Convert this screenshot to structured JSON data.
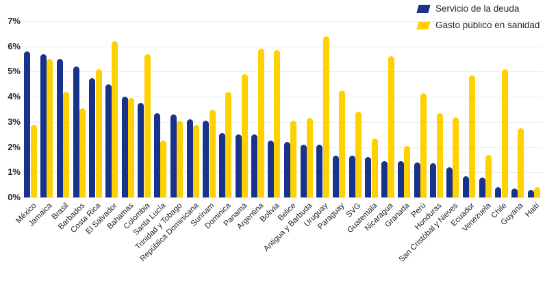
{
  "chart_data": {
    "type": "bar",
    "title": "",
    "xlabel": "",
    "ylabel": "",
    "ylim": [
      0,
      7
    ],
    "yticks": [
      0,
      1,
      2,
      3,
      4,
      5,
      6,
      7
    ],
    "ytick_suffix": "%",
    "grid": true,
    "legend_position": "top-right",
    "categories": [
      "México",
      "Jamaica",
      "Brasil",
      "Barbados",
      "Costa Rica",
      "El Salvador",
      "Bahamas",
      "Colombia",
      "Santa Lucía",
      "Trinidad y Tobago",
      "República Dominicana",
      "Surinam",
      "Dominica",
      "Panamá",
      "Argentina",
      "Bolivia",
      "Belice",
      "Antigua y Barbuda",
      "Uruguay",
      "Paraguay",
      "SVG",
      "Guatemala",
      "Nicaragua",
      "Granada",
      "Perú",
      "Honduras",
      "San Cristóbal y Nieves",
      "Ecuador",
      "Venezuela",
      "Chile",
      "Guyana",
      "Haití"
    ],
    "series": [
      {
        "name": "Servicio de la deuda",
        "color": "#17338d",
        "values": [
          5.8,
          5.7,
          5.5,
          5.2,
          4.75,
          4.5,
          4.0,
          3.75,
          3.35,
          3.3,
          3.1,
          3.05,
          2.55,
          2.5,
          2.5,
          2.25,
          2.2,
          2.1,
          2.1,
          1.65,
          1.65,
          1.6,
          1.45,
          1.45,
          1.4,
          1.35,
          1.2,
          0.85,
          0.8,
          0.4,
          0.35,
          0.3
        ]
      },
      {
        "name": "Gasto público en sanidad",
        "color": "#ffd100",
        "values": [
          2.9,
          5.5,
          4.2,
          3.55,
          5.1,
          6.2,
          3.95,
          5.7,
          2.25,
          3.05,
          2.9,
          3.5,
          4.2,
          4.9,
          5.9,
          5.85,
          3.05,
          3.15,
          6.4,
          4.25,
          3.4,
          2.35,
          5.6,
          2.05,
          4.15,
          3.35,
          3.2,
          4.85,
          1.7,
          5.1,
          2.75,
          0.4
        ]
      }
    ]
  }
}
